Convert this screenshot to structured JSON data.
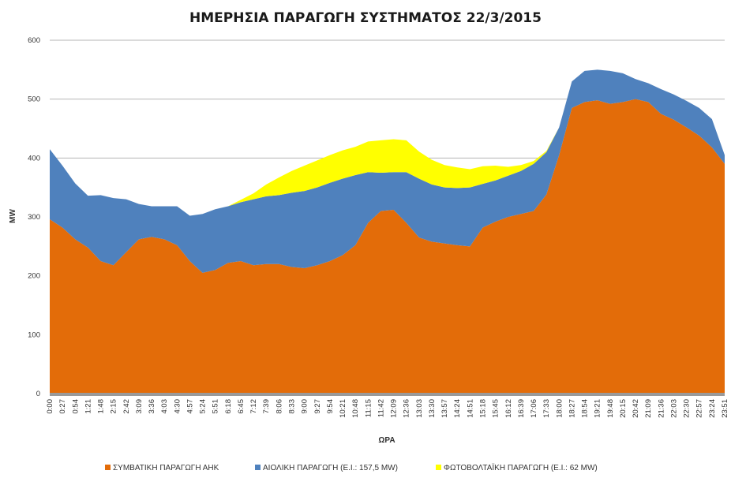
{
  "chart_data": {
    "type": "area",
    "title": "ΗΜΕΡΗΣΙΑ ΠΑΡΑΓΩΓΗ ΣΥΣΤΗΜΑΤΟΣ 22/3/2015",
    "xlabel": "ΩΡΑ",
    "ylabel": "MW",
    "ylim": [
      0,
      600
    ],
    "yticks": [
      0,
      100,
      200,
      300,
      400,
      500,
      600
    ],
    "grid": true,
    "legend_position": "bottom",
    "stacked": true,
    "x": [
      "0:00",
      "0:27",
      "0:54",
      "1:21",
      "1:48",
      "2:15",
      "2:42",
      "3:09",
      "3:36",
      "4:03",
      "4:30",
      "4:57",
      "5:24",
      "5:51",
      "6:18",
      "6:45",
      "7:12",
      "7:39",
      "8:06",
      "8:33",
      "9:00",
      "9:27",
      "9:54",
      "10:21",
      "10:48",
      "11:15",
      "11:42",
      "12:09",
      "12:36",
      "13:03",
      "13:30",
      "13:57",
      "14:24",
      "14:51",
      "15:18",
      "15:45",
      "16:12",
      "16:39",
      "17:06",
      "17:33",
      "18:00",
      "18:27",
      "18:54",
      "19:21",
      "19:48",
      "20:15",
      "20:42",
      "21:09",
      "21:36",
      "22:03",
      "22:30",
      "22:57",
      "23:24",
      "23:51"
    ],
    "series": [
      {
        "name": "ΣΥΜΒΑΤΙΚΗ ΠΑΡΑΓΩΓΗ ΑΗΚ",
        "color": "#e36c09",
        "values": [
          296,
          282,
          262,
          248,
          225,
          218,
          240,
          262,
          266,
          262,
          252,
          225,
          205,
          210,
          222,
          225,
          218,
          220,
          220,
          215,
          213,
          218,
          225,
          235,
          252,
          290,
          310,
          312,
          290,
          265,
          258,
          255,
          252,
          250,
          282,
          292,
          300,
          305,
          310,
          338,
          405,
          485,
          495,
          498,
          492,
          495,
          500,
          495,
          475,
          465,
          452,
          438,
          418,
          390
        ]
      },
      {
        "name": "ΑΙΟΛΙΚΗ ΠΑΡΑΓΩΓΗ (Ε.Ι.: 157,5 MW)",
        "color": "#4f81bd",
        "values": [
          119,
          105,
          95,
          88,
          112,
          114,
          90,
          60,
          52,
          56,
          66,
          77,
          100,
          103,
          96,
          100,
          112,
          115,
          117,
          126,
          131,
          132,
          133,
          130,
          119,
          86,
          65,
          64,
          86,
          100,
          97,
          95,
          97,
          100,
          74,
          70,
          70,
          73,
          80,
          72,
          47,
          45,
          53,
          52,
          56,
          49,
          34,
          32,
          42,
          43,
          45,
          47,
          48,
          15
        ]
      },
      {
        "name": "ΦΩΤΟΒΟΛΤΑΪΚΗ ΠΑΡΑΓΩΓΗ (Ε.Ι.: 62 MW)",
        "color": "#ffff00",
        "values": [
          0,
          0,
          0,
          0,
          0,
          0,
          0,
          0,
          0,
          0,
          0,
          0,
          0,
          0,
          0,
          4,
          10,
          20,
          30,
          37,
          43,
          46,
          47,
          48,
          48,
          52,
          55,
          56,
          54,
          46,
          42,
          38,
          35,
          31,
          30,
          25,
          15,
          10,
          5,
          2,
          0,
          0,
          0,
          0,
          0,
          0,
          0,
          0,
          0,
          0,
          0,
          0,
          0,
          0
        ]
      }
    ]
  }
}
